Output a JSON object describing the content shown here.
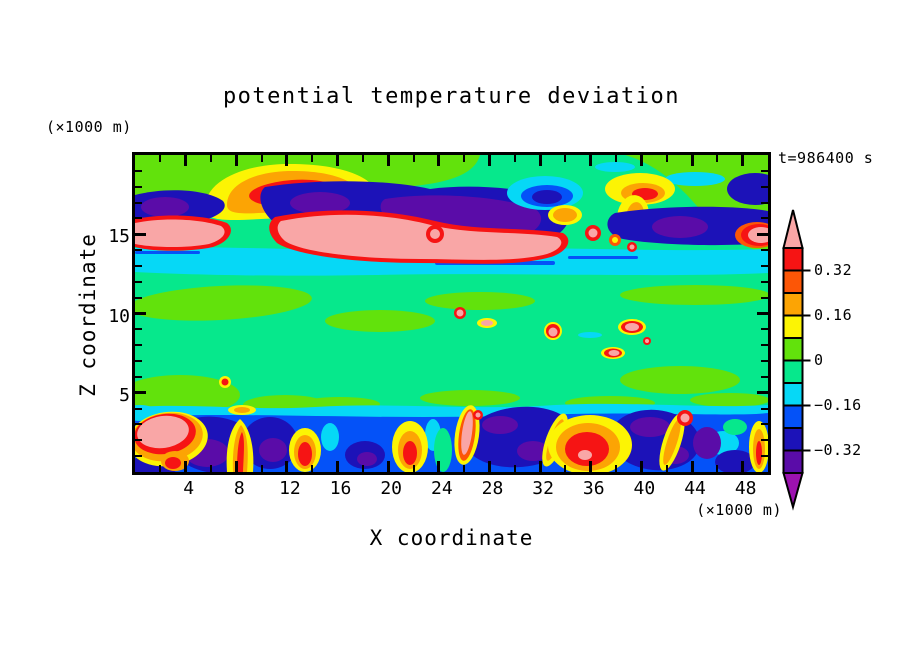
{
  "title": "potential temperature deviation",
  "time_label": "t=986400 s",
  "y_unit_label": "(×1000 m)",
  "x_unit_label": "(×1000 m)",
  "chart_data": {
    "type": "heatmap",
    "subtype": "filled-contour-cross-section",
    "title": "potential temperature deviation",
    "time_label": "t=986400 s",
    "xlabel": "X coordinate",
    "ylabel": "Z coordinate",
    "x_unit_label": "(×1000 m)",
    "y_unit_label": "(×1000 m)",
    "x_axis": {
      "min": 0,
      "max": 50,
      "minor_step": 2,
      "tick_labels": [
        4,
        8,
        12,
        16,
        20,
        24,
        28,
        32,
        36,
        40,
        44,
        48
      ]
    },
    "y_axis": {
      "min": 0,
      "max": 20,
      "minor_step": 1,
      "tick_labels": [
        5,
        10,
        15
      ]
    },
    "grid": false,
    "contour_interval": 0.08,
    "levels": [
      -0.4,
      -0.32,
      -0.24,
      -0.16,
      -0.08,
      0,
      0.08,
      0.16,
      0.24,
      0.32,
      0.4
    ],
    "colorbar": {
      "orientation": "vertical",
      "position": "right",
      "tick_labels_top_to_bottom": [
        "0.32",
        "0.16",
        "0",
        "−0.16",
        "−0.32"
      ],
      "over_color": "#f9a6a6",
      "under_color": "#9c12b0",
      "band_colors_top_to_bottom": [
        "#f61414",
        "#fc5606",
        "#fca404",
        "#fcf404",
        "#62e20c",
        "#06e88c",
        "#06d8f6",
        "#0452f8",
        "#1c12b8",
        "#5a0ca8"
      ]
    },
    "palette": {
      "pink": "#f9a6a6",
      "red": "#f61414",
      "orange_red": "#fc5606",
      "orange": "#fca404",
      "yellow": "#fcf404",
      "yellow_green": "#62e20c",
      "spring_green": "#06e88c",
      "cyan": "#06d8f6",
      "blue": "#0452f8",
      "dark_blue": "#1c12b8",
      "violet": "#5a0ca8",
      "purple": "#9c12b0"
    },
    "features": [
      "wave band at z≈14–17.5 km with pink (>0.40) tongues and dark-blue/violet (<−0.24) pockets",
      "cyan layer (−0.16 to −0.08) near z≈13–14 km spanning the full domain",
      "near-zero spring-green region between z≈4 and 12.5 km with scattered small warm spots",
      "turbulent layer below z≈3.5 km with alternating warm plumes (>0.32) and cold pockets (<−0.32)"
    ]
  }
}
